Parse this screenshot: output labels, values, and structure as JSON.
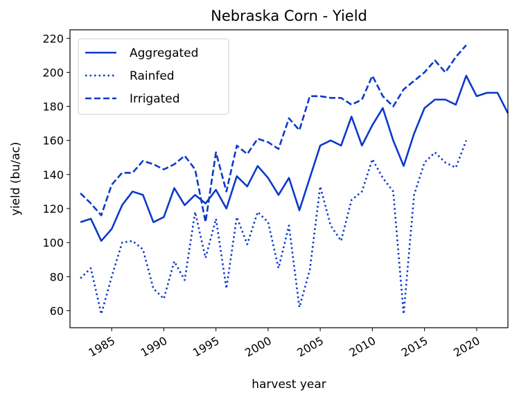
{
  "chart_data": {
    "type": "line",
    "title": "Nebraska Corn - Yield",
    "x_label": "harvest year",
    "y_label": "yield (bu/ac)",
    "x": [
      1982,
      1983,
      1984,
      1985,
      1986,
      1987,
      1988,
      1989,
      1990,
      1991,
      1992,
      1993,
      1994,
      1995,
      1996,
      1997,
      1998,
      1999,
      2000,
      2001,
      2002,
      2003,
      2004,
      2005,
      2006,
      2007,
      2008,
      2009,
      2010,
      2011,
      2012,
      2013,
      2014,
      2015,
      2016,
      2017,
      2018,
      2019,
      2020,
      2021,
      2022,
      2023
    ],
    "series": [
      {
        "name": "Aggregated",
        "color": "#0b39c9",
        "linestyle": "solid",
        "values": [
          112,
          114,
          101,
          108,
          122,
          130,
          128,
          112,
          115,
          132,
          122,
          128,
          123,
          131,
          120,
          139,
          133,
          145,
          138,
          128,
          138,
          119,
          138,
          157,
          160,
          157,
          174,
          157,
          169,
          179,
          160,
          145,
          164,
          179,
          184,
          184,
          181,
          198,
          186,
          188,
          188,
          176
        ]
      },
      {
        "name": "Rainfed",
        "color": "#0b39c9",
        "linestyle": "dotted",
        "values": [
          79,
          85,
          58,
          80,
          100,
          101,
          96,
          73,
          67,
          89,
          78,
          118,
          91,
          114,
          73,
          115,
          99,
          118,
          112,
          85,
          110,
          62,
          84,
          133,
          110,
          101,
          125,
          130,
          149,
          138,
          130,
          58,
          128,
          147,
          153,
          147,
          144,
          160,
          null,
          null,
          null,
          null
        ]
      },
      {
        "name": "Irrigated",
        "color": "#0b39c9",
        "linestyle": "dashed",
        "values": [
          129,
          123,
          116,
          134,
          141,
          141,
          148,
          146,
          143,
          146,
          151,
          143,
          112,
          153,
          130,
          157,
          152,
          161,
          159,
          155,
          173,
          166,
          186,
          186,
          185,
          185,
          181,
          184,
          198,
          186,
          180,
          190,
          195,
          200,
          207,
          200,
          209,
          216,
          null,
          null,
          null,
          null
        ]
      }
    ],
    "xlim": [
      1981,
      2023
    ],
    "xticks": [
      1985,
      1990,
      1995,
      2000,
      2005,
      2010,
      2015,
      2020
    ],
    "ylim": [
      50,
      225
    ],
    "yticks": [
      60,
      80,
      100,
      120,
      140,
      160,
      180,
      200,
      220
    ],
    "legend": "upper left",
    "grid": false
  }
}
